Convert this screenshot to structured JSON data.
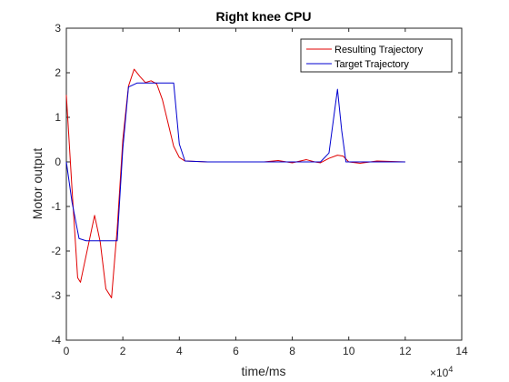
{
  "chart_data": {
    "type": "line",
    "title": "Right knee CPU",
    "xlabel": "time/ms",
    "ylabel": "Motor output",
    "x_exponent_label": "×10",
    "x_exponent_power": "4",
    "xlim": [
      0,
      14
    ],
    "ylim": [
      -4,
      3
    ],
    "x_ticks": [
      "0",
      "2",
      "4",
      "6",
      "8",
      "10",
      "12",
      "14"
    ],
    "y_ticks": [
      "-4",
      "-3",
      "-2",
      "-1",
      "0",
      "1",
      "2",
      "3"
    ],
    "grid": false,
    "legend_position": "top-right",
    "series": [
      {
        "name": "Resulting Trajectory",
        "color": "#e00000",
        "x": [
          0,
          0.2,
          0.4,
          0.5,
          0.8,
          1.0,
          1.2,
          1.4,
          1.6,
          1.8,
          2.0,
          2.2,
          2.4,
          2.6,
          2.8,
          3.0,
          3.2,
          3.4,
          3.8,
          4.0,
          4.2,
          5.0,
          6.0,
          7.0,
          7.5,
          8.0,
          8.5,
          8.8,
          9.0,
          9.3,
          9.6,
          9.8,
          10.0,
          10.4,
          11.0,
          12.0
        ],
        "y": [
          1.5,
          -0.6,
          -2.6,
          -2.7,
          -1.8,
          -1.2,
          -1.8,
          -2.85,
          -3.05,
          -1.5,
          0.5,
          1.7,
          2.08,
          1.92,
          1.78,
          1.82,
          1.75,
          1.4,
          0.35,
          0.1,
          0.02,
          0.0,
          0.0,
          0.0,
          0.03,
          -0.02,
          0.05,
          0.0,
          -0.02,
          0.08,
          0.15,
          0.13,
          0.0,
          -0.03,
          0.02,
          0.0
        ]
      },
      {
        "name": "Target Trajectory",
        "color": "#0000d0",
        "x": [
          0,
          0.2,
          0.45,
          0.7,
          1.0,
          1.4,
          1.8,
          2.0,
          2.2,
          2.5,
          2.8,
          3.0,
          3.5,
          3.8,
          4.0,
          4.2,
          5.0,
          6.0,
          7.0,
          8.0,
          8.5,
          9.0,
          9.3,
          9.6,
          9.75,
          9.9,
          10.0,
          10.5,
          11.0,
          12.0
        ],
        "y": [
          0.0,
          -0.9,
          -1.72,
          -1.77,
          -1.77,
          -1.77,
          -1.77,
          0.3,
          1.68,
          1.77,
          1.77,
          1.77,
          1.77,
          1.77,
          0.4,
          0.02,
          0.0,
          0.0,
          0.0,
          0.0,
          0.0,
          0.0,
          0.2,
          1.63,
          0.7,
          0.0,
          0.0,
          0.0,
          0.0,
          0.0
        ]
      }
    ]
  }
}
